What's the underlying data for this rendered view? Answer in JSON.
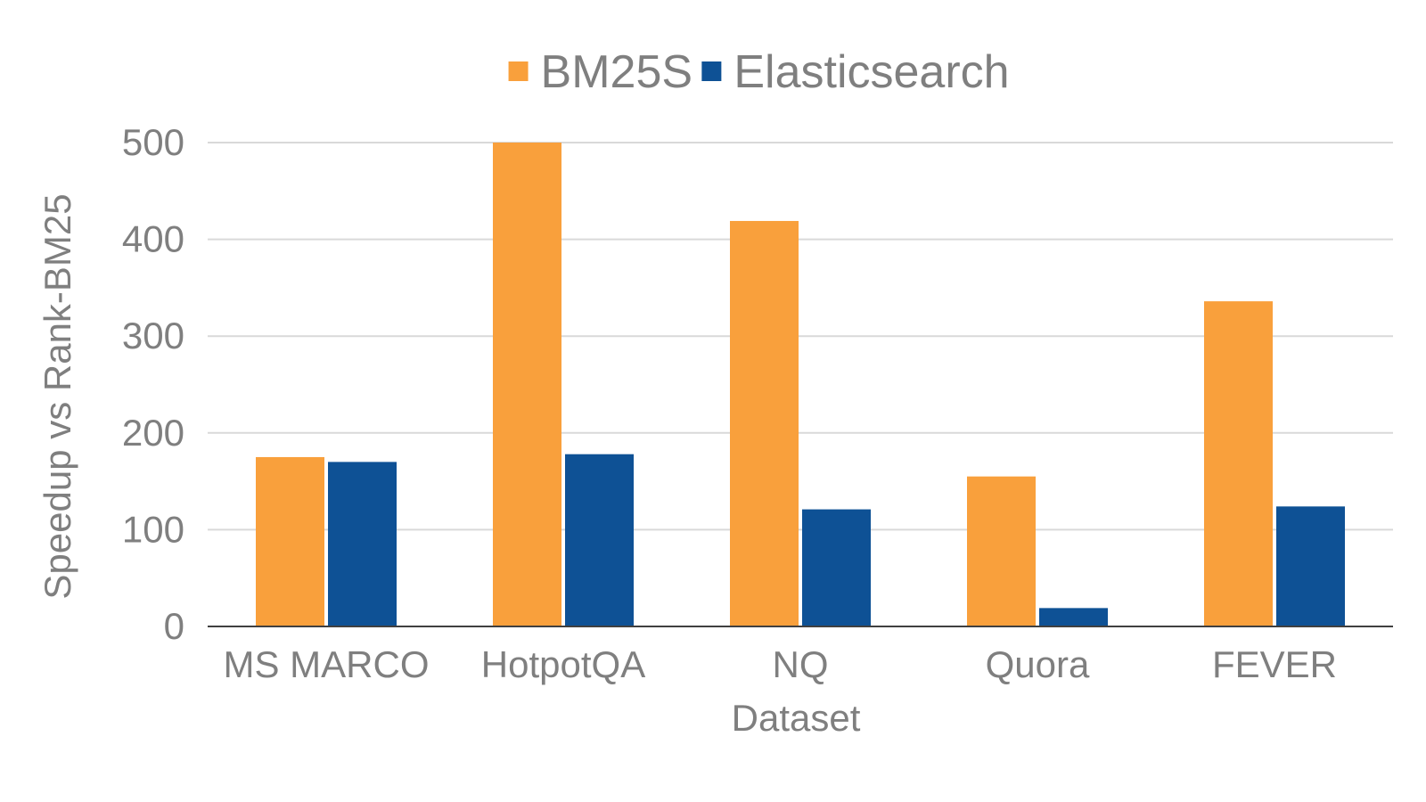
{
  "chart_data": {
    "type": "bar",
    "categories": [
      "MS MARCO",
      "HotpotQA",
      "NQ",
      "Quora",
      "FEVER"
    ],
    "series": [
      {
        "name": "BM25S",
        "color": "#f9a03c",
        "values": [
          175,
          500,
          419,
          155,
          336
        ]
      },
      {
        "name": "Elasticsearch",
        "color": "#0e5195",
        "values": [
          170,
          178,
          121,
          19,
          124
        ]
      }
    ],
    "xlabel": "Dataset",
    "ylabel": "Speedup vs Rank-BM25",
    "ylim": [
      0,
      500
    ],
    "yticks": [
      0,
      100,
      200,
      300,
      400,
      500
    ],
    "grid": true,
    "legend_position": "top-center"
  }
}
